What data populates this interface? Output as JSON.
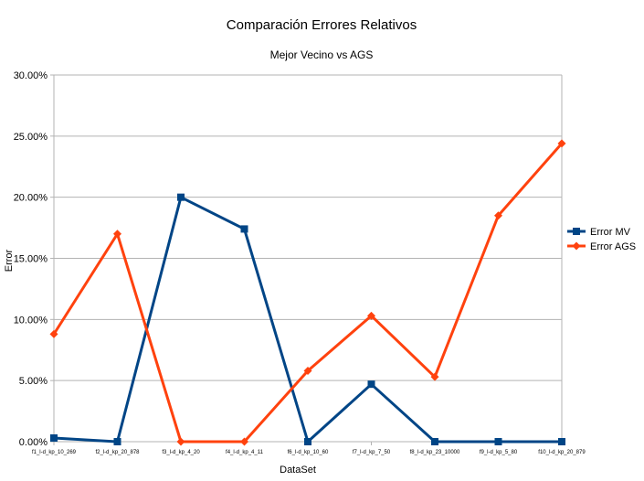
{
  "chart_data": {
    "type": "line",
    "title": "Comparación Errores Relativos",
    "subtitle": "Mejor Vecino vs AGS",
    "xlabel": "DataSet",
    "ylabel": "Error",
    "categories": [
      "f1_l-d_kp_10_269",
      "f2_l-d_kp_20_878",
      "f3_l-d_kp_4_20",
      "f4_l-d_kp_4_11",
      "f6_l-d_kp_10_60",
      "f7_l-d_kp_7_50",
      "f8_l-d_kp_23_10000",
      "f9_l-d_kp_5_80",
      "f10_l-d_kp_20_879"
    ],
    "y_ticks": [
      "0.00%",
      "5.00%",
      "10.00%",
      "15.00%",
      "20.00%",
      "25.00%",
      "30.00%"
    ],
    "ylim": [
      0,
      0.3
    ],
    "y_tick_step": 0.05,
    "grid": "horizontal",
    "legend_placement": "right",
    "series": [
      {
        "name": "Error MV",
        "color": "#004586",
        "marker": "square",
        "values": [
          0.003,
          0.0,
          0.2,
          0.174,
          0.0,
          0.047,
          0.0,
          0.0,
          0.0
        ]
      },
      {
        "name": "Error AGS",
        "color": "#ff420e",
        "marker": "diamond",
        "values": [
          0.088,
          0.17,
          0.0,
          0.0,
          0.058,
          0.103,
          0.053,
          0.185,
          0.244
        ]
      }
    ]
  }
}
